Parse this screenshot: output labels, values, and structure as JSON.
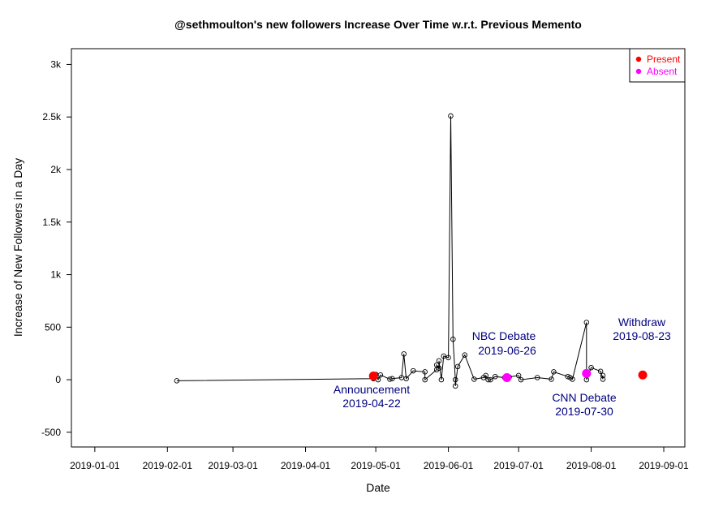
{
  "chart_data": {
    "type": "scatter",
    "title": "@sethmoulton's new followers Increase Over Time w.r.t. Previous Memento",
    "xlabel": "Date",
    "ylabel": "Increase of New Followers in a Day",
    "xlim": [
      "2018-12-22",
      "2019-09-10"
    ],
    "ylim": [
      -640,
      3150
    ],
    "x_ticks": [
      "2019-01-01",
      "2019-02-01",
      "2019-03-01",
      "2019-04-01",
      "2019-05-01",
      "2019-06-01",
      "2019-07-01",
      "2019-08-01",
      "2019-09-01"
    ],
    "x_tick_labels": [
      "2019-01-01",
      "2019-02-01",
      "2019-03-01",
      "2019-04-01",
      "2019-05-01",
      "2019-06-01",
      "2019-07-01",
      "2019-08-01",
      "2019-09-01"
    ],
    "y_ticks": [
      -500,
      0,
      500,
      1000,
      1500,
      2000,
      2500,
      3000
    ],
    "y_tick_labels": [
      "-500",
      "0",
      "500",
      "1k",
      "1.5k",
      "2k",
      "2.5k",
      "3k"
    ],
    "grid": false,
    "legend_position": "top-right",
    "colors": {
      "line": "#000000",
      "present": "#ff0000",
      "absent": "#ff00ff",
      "annotation": "#000080"
    },
    "legend": [
      {
        "label": "Present",
        "color": "#ff0000"
      },
      {
        "label": "Absent",
        "color": "#ff00ff"
      }
    ],
    "series": [
      {
        "x": [
          "2019-02-05",
          "2019-04-30",
          "2019-05-01",
          "2019-05-02",
          "2019-05-03",
          "2019-05-07",
          "2019-05-08",
          "2019-05-12",
          "2019-05-13",
          "2019-05-14",
          "2019-05-17",
          "2019-05-22",
          "2019-05-22",
          "2019-05-27",
          "2019-05-27",
          "2019-05-28",
          "2019-05-28",
          "2019-05-29",
          "2019-05-30",
          "2019-06-01",
          "2019-06-02",
          "2019-06-03",
          "2019-06-04",
          "2019-06-04",
          "2019-06-05",
          "2019-06-08",
          "2019-06-12",
          "2019-06-16",
          "2019-06-17",
          "2019-06-18",
          "2019-06-19",
          "2019-06-21",
          "2019-06-25",
          "2019-06-27",
          "2019-07-01",
          "2019-07-02",
          "2019-07-09",
          "2019-07-15",
          "2019-07-16",
          "2019-07-22",
          "2019-07-23",
          "2019-07-24",
          "2019-07-30",
          "2019-07-30",
          "2019-08-01",
          "2019-08-05",
          "2019-08-06",
          "2019-08-06"
        ],
        "y": [
          -10,
          10,
          50,
          0,
          45,
          5,
          10,
          20,
          245,
          10,
          85,
          75,
          0,
          95,
          140,
          110,
          180,
          0,
          225,
          210,
          2510,
          385,
          0,
          -60,
          125,
          235,
          5,
          20,
          40,
          0,
          0,
          30,
          20,
          25,
          40,
          0,
          20,
          5,
          75,
          30,
          20,
          5,
          545,
          0,
          115,
          80,
          5,
          40
        ]
      }
    ],
    "highlighted_points": [
      {
        "x": "2019-04-30",
        "y": 35,
        "status": "Present"
      },
      {
        "x": "2019-06-26",
        "y": 20,
        "status": "Absent"
      },
      {
        "x": "2019-07-30",
        "y": 60,
        "status": "Absent"
      },
      {
        "x": "2019-08-23",
        "y": 45,
        "status": "Present"
      }
    ],
    "annotations": [
      {
        "line1": "Announcement",
        "line2": "2019-04-22"
      },
      {
        "line1": "NBC Debate",
        "line2": "2019-06-26"
      },
      {
        "line1": "CNN Debate",
        "line2": "2019-07-30"
      },
      {
        "line1": "Withdraw",
        "line2": "2019-08-23"
      }
    ]
  }
}
